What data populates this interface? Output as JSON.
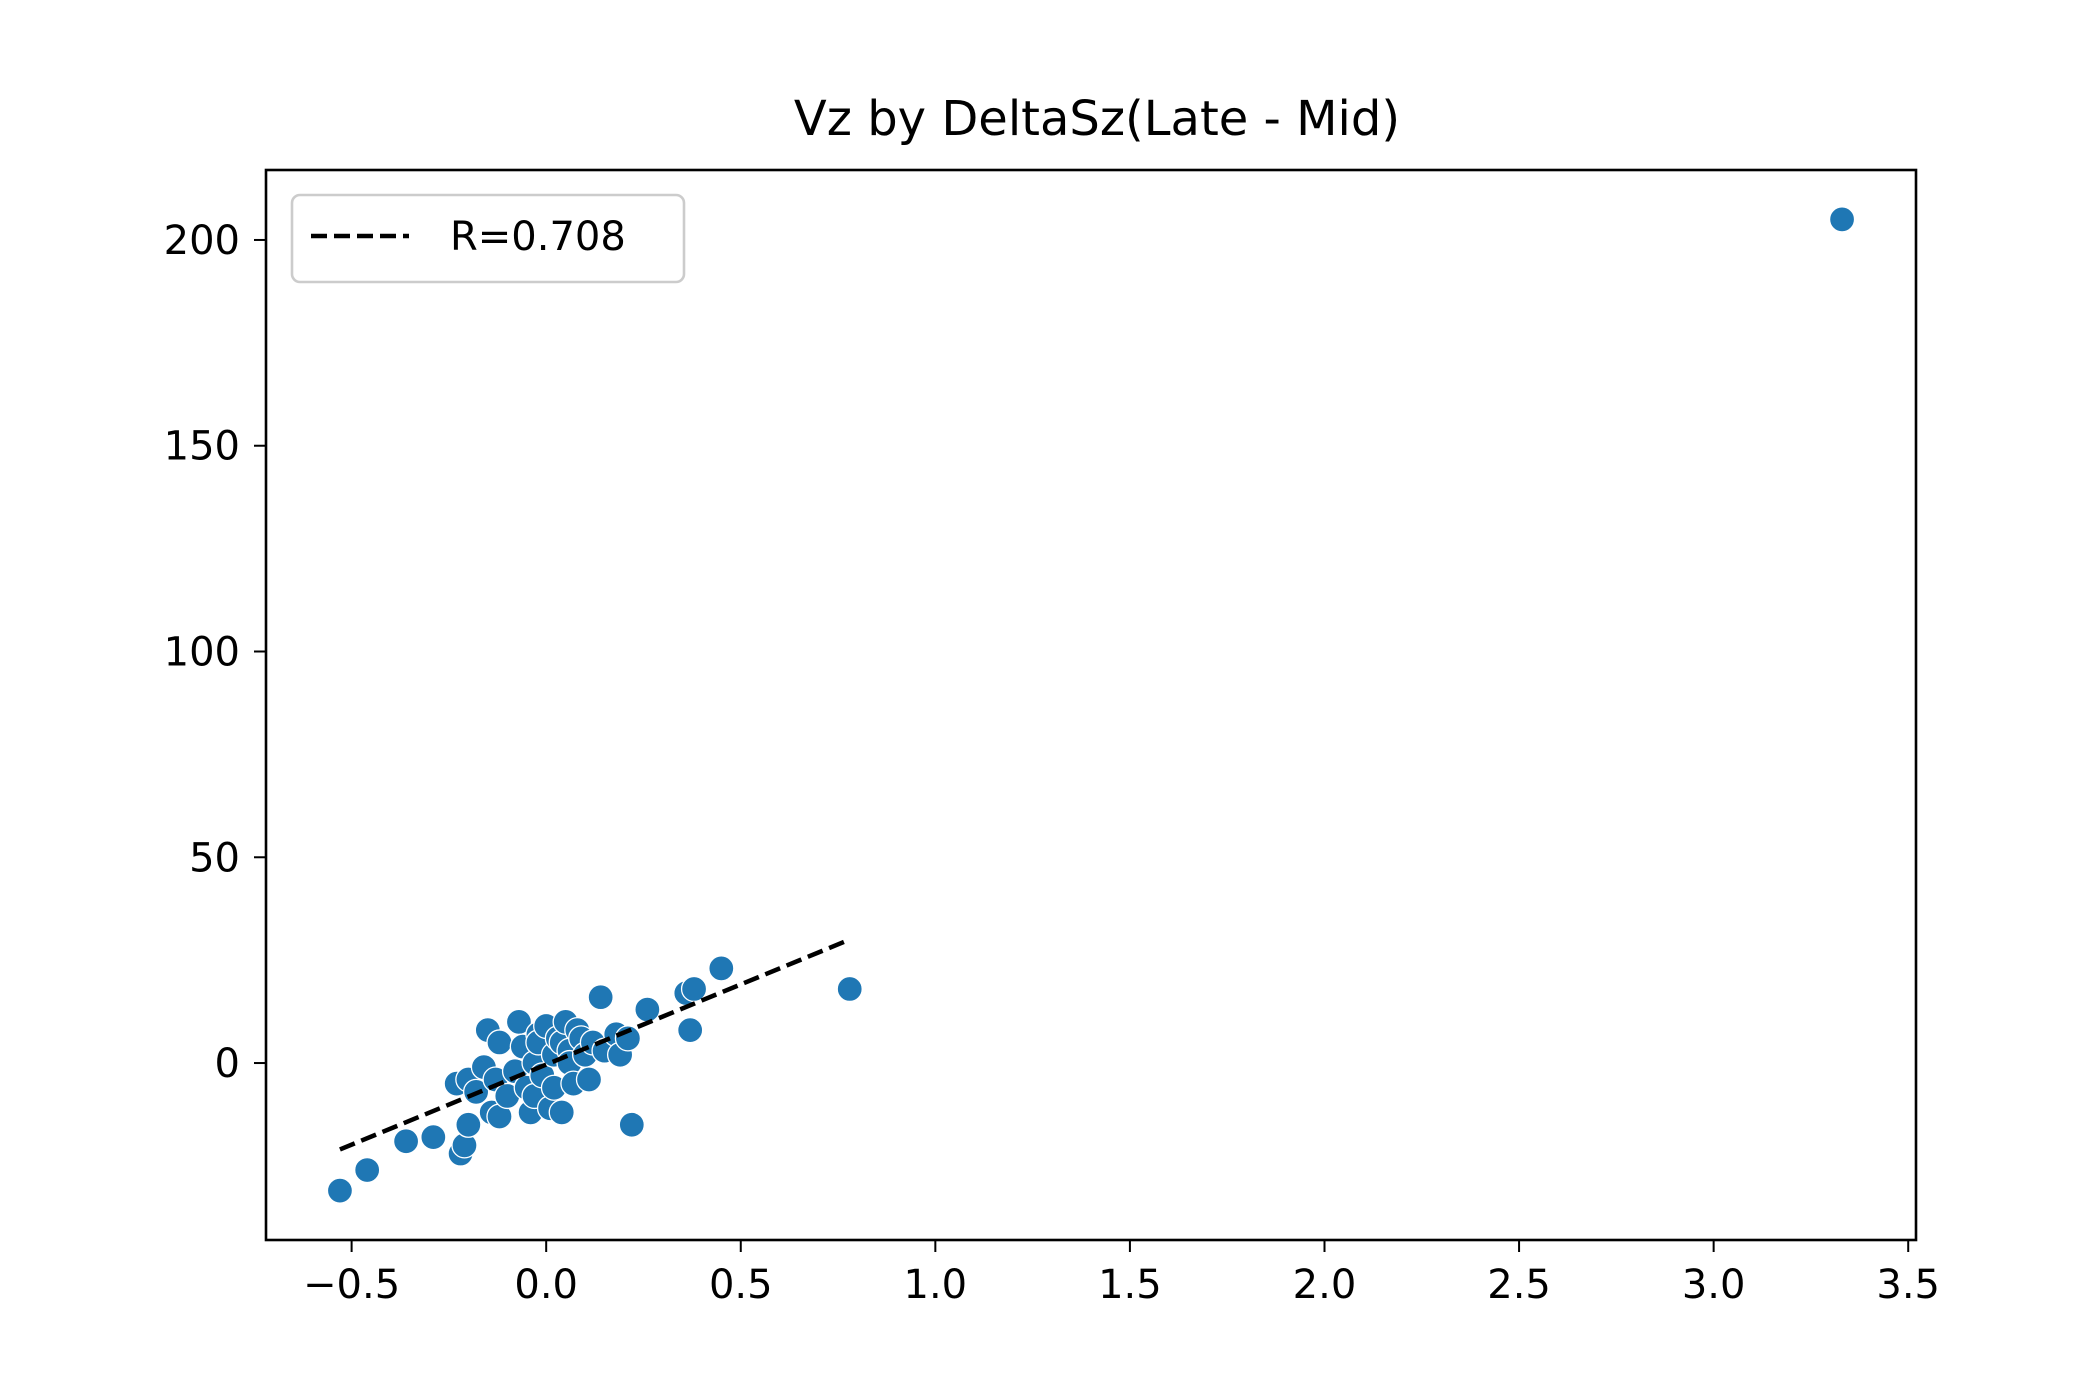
{
  "chart_data": {
    "type": "scatter",
    "title": "Vz by DeltaSz(Late - Mid)",
    "xlabel": "",
    "ylabel": "",
    "xlim": [
      -0.72,
      3.52
    ],
    "ylim": [
      -43,
      217
    ],
    "xticks": [
      -0.5,
      0.0,
      0.5,
      1.0,
      1.5,
      2.0,
      2.5,
      3.0,
      3.5
    ],
    "xtick_labels": [
      "−0.5",
      "0.0",
      "0.5",
      "1.0",
      "1.5",
      "2.0",
      "2.5",
      "3.0",
      "3.5"
    ],
    "yticks": [
      0,
      50,
      100,
      150,
      200
    ],
    "ytick_labels": [
      "0",
      "50",
      "100",
      "150",
      "200"
    ],
    "grid": false,
    "legend_position": "top-left",
    "point_color": "#1f77b4",
    "fit_line_color": "#000000",
    "fit_line": {
      "label": "R=0.708",
      "style": "dashed",
      "x": [
        -0.53,
        0.78
      ],
      "y": [
        -21,
        30
      ]
    },
    "points": [
      {
        "x": -0.53,
        "y": -31
      },
      {
        "x": -0.46,
        "y": -26
      },
      {
        "x": -0.36,
        "y": -19
      },
      {
        "x": -0.29,
        "y": -18
      },
      {
        "x": -0.22,
        "y": -22
      },
      {
        "x": -0.21,
        "y": -20
      },
      {
        "x": -0.2,
        "y": -15
      },
      {
        "x": -0.23,
        "y": -5
      },
      {
        "x": -0.2,
        "y": -4
      },
      {
        "x": -0.18,
        "y": -7
      },
      {
        "x": -0.16,
        "y": -1
      },
      {
        "x": -0.15,
        "y": 8
      },
      {
        "x": -0.14,
        "y": -12
      },
      {
        "x": -0.12,
        "y": -13
      },
      {
        "x": -0.13,
        "y": -4
      },
      {
        "x": -0.12,
        "y": 5
      },
      {
        "x": -0.1,
        "y": -8
      },
      {
        "x": -0.08,
        "y": -2
      },
      {
        "x": -0.07,
        "y": 10
      },
      {
        "x": -0.06,
        "y": 4
      },
      {
        "x": -0.05,
        "y": -6
      },
      {
        "x": -0.04,
        "y": -12
      },
      {
        "x": -0.03,
        "y": 0
      },
      {
        "x": -0.02,
        "y": 7
      },
      {
        "x": -0.03,
        "y": -8
      },
      {
        "x": -0.02,
        "y": 5
      },
      {
        "x": -0.01,
        "y": -3
      },
      {
        "x": 0.0,
        "y": 9
      },
      {
        "x": 0.01,
        "y": -11
      },
      {
        "x": 0.02,
        "y": 2
      },
      {
        "x": 0.02,
        "y": -6
      },
      {
        "x": 0.03,
        "y": 6
      },
      {
        "x": 0.04,
        "y": 5
      },
      {
        "x": 0.04,
        "y": -12
      },
      {
        "x": 0.05,
        "y": 10
      },
      {
        "x": 0.06,
        "y": 3
      },
      {
        "x": 0.06,
        "y": 0
      },
      {
        "x": 0.07,
        "y": -5
      },
      {
        "x": 0.08,
        "y": 8
      },
      {
        "x": 0.09,
        "y": 6
      },
      {
        "x": 0.1,
        "y": 2
      },
      {
        "x": 0.11,
        "y": -4
      },
      {
        "x": 0.12,
        "y": 5
      },
      {
        "x": 0.14,
        "y": 16
      },
      {
        "x": 0.15,
        "y": 3
      },
      {
        "x": 0.18,
        "y": 7
      },
      {
        "x": 0.19,
        "y": 2
      },
      {
        "x": 0.21,
        "y": 6
      },
      {
        "x": 0.22,
        "y": -15
      },
      {
        "x": 0.26,
        "y": 13
      },
      {
        "x": 0.36,
        "y": 17
      },
      {
        "x": 0.37,
        "y": 8
      },
      {
        "x": 0.38,
        "y": 18
      },
      {
        "x": 0.45,
        "y": 23
      },
      {
        "x": 0.78,
        "y": 18
      },
      {
        "x": 3.33,
        "y": 205
      }
    ]
  }
}
